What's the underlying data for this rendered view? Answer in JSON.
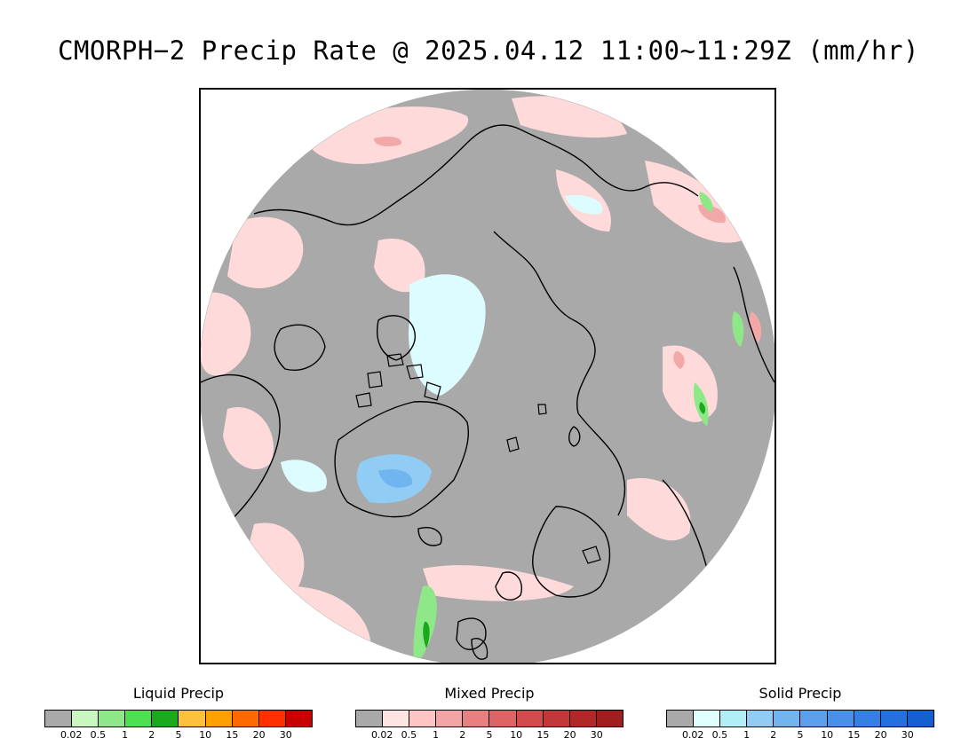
{
  "title": "CMORPH−2 Precip Rate @ 2025.04.12 11:00~11:29Z (mm/hr)",
  "map": {
    "projection": "polar stereographic (North Pole)",
    "background_color": "#a9a9a9",
    "no_data_color": "#ffffff",
    "coastline_color": "#000000"
  },
  "legends": [
    {
      "id": "liquid",
      "title": "Liquid Precip",
      "colors": [
        "#a9a9a9",
        "#c8f8c0",
        "#8ee888",
        "#4ee050",
        "#1ca81c",
        "#ffc040",
        "#ffa000",
        "#ff6a00",
        "#ff3000",
        "#c80000"
      ],
      "ticks": [
        "0.02",
        "0.5",
        "1",
        "2",
        "5",
        "10",
        "15",
        "20",
        "30"
      ]
    },
    {
      "id": "mixed",
      "title": "Mixed Precip",
      "colors": [
        "#a9a9a9",
        "#ffe4e4",
        "#ffc4c4",
        "#f4a4a4",
        "#e88080",
        "#dc6464",
        "#d04c4c",
        "#c03838",
        "#b02828",
        "#a01e1e"
      ],
      "ticks": [
        "0.02",
        "0.5",
        "1",
        "2",
        "5",
        "10",
        "15",
        "20",
        "30"
      ]
    },
    {
      "id": "solid",
      "title": "Solid Precip",
      "colors": [
        "#a9a9a9",
        "#e0ffff",
        "#b0eef8",
        "#90ccf4",
        "#70b4f0",
        "#5aa0ec",
        "#4890e8",
        "#3680e4",
        "#2470dc",
        "#1460d0"
      ],
      "ticks": [
        "0.02",
        "0.5",
        "1",
        "2",
        "5",
        "10",
        "15",
        "20",
        "30"
      ]
    }
  ]
}
